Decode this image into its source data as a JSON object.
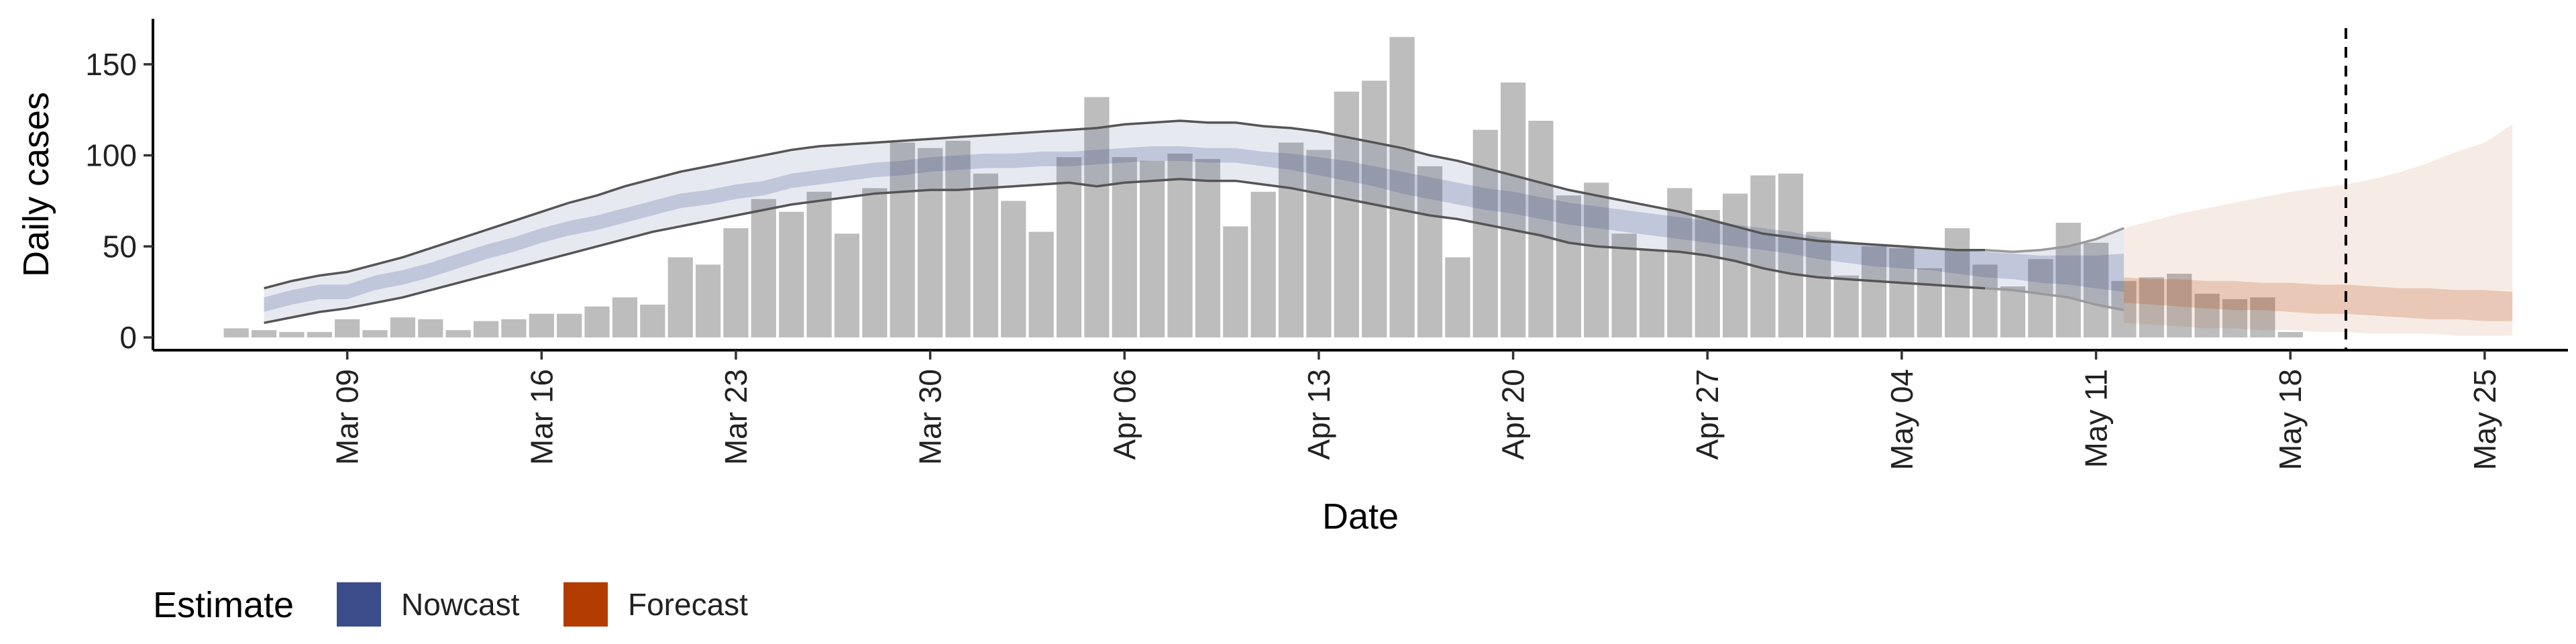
{
  "chart_data": {
    "type": "bar",
    "xlabel": "Date",
    "ylabel": "Daily cases",
    "ylim": [
      -7,
      175
    ],
    "yticks": [
      0,
      50,
      100,
      150
    ],
    "xlim": [
      "2020-03-02",
      "2020-05-28"
    ],
    "xticks": [
      "2020-03-09",
      "2020-03-16",
      "2020-03-23",
      "2020-03-30",
      "2020-04-06",
      "2020-04-13",
      "2020-04-20",
      "2020-04-27",
      "2020-05-04",
      "2020-05-11",
      "2020-05-18",
      "2020-05-25"
    ],
    "xtick_labels": [
      "Mar 09",
      "Mar 16",
      "Mar 23",
      "Mar 30",
      "Apr 06",
      "Apr 13",
      "Apr 20",
      "Apr 27",
      "May 04",
      "May 11",
      "May 18",
      "May 25"
    ],
    "grid": false,
    "legend": {
      "title": "Estimate",
      "position": "bottom-left",
      "entries": [
        {
          "label": "Nowcast",
          "color": "#3a4d8a"
        },
        {
          "label": "Forecast",
          "color": "#b33c00"
        }
      ]
    },
    "cutoff_date": "2020-05-20",
    "bars": {
      "start_date": "2020-03-05",
      "color": "#bdbdbd",
      "values": [
        5,
        4,
        3,
        3,
        10,
        4,
        11,
        10,
        4,
        9,
        10,
        13,
        13,
        17,
        22,
        18,
        44,
        40,
        60,
        76,
        69,
        80,
        57,
        82,
        107,
        104,
        108,
        90,
        75,
        58,
        99,
        132,
        99,
        97,
        101,
        98,
        61,
        80,
        107,
        103,
        135,
        141,
        165,
        94,
        44,
        114,
        140,
        119,
        78,
        85,
        57,
        48,
        82,
        70,
        79,
        89,
        90,
        58,
        34,
        50,
        49,
        38,
        60,
        40,
        28,
        43,
        63,
        52,
        31,
        33,
        35,
        24,
        21,
        22,
        3
      ]
    },
    "series": [
      {
        "name": "Nowcast",
        "color": "#3a4d8a",
        "start_date": "2020-03-06",
        "median": [
          18,
          22,
          25,
          25,
          30,
          33,
          37,
          42,
          47,
          51,
          56,
          60,
          63,
          67,
          71,
          75,
          77,
          80,
          82,
          86,
          88,
          90,
          92,
          93,
          95,
          96,
          97,
          97,
          98,
          98,
          99,
          100,
          101,
          101,
          100,
          100,
          98,
          97,
          95,
          93,
          90,
          86,
          83,
          80,
          77,
          75,
          72,
          69,
          67,
          65,
          63,
          61,
          59,
          57,
          55,
          53,
          50,
          48,
          46,
          45,
          44,
          43,
          41,
          40,
          39,
          38,
          37,
          36
        ],
        "inner_lower": [
          14,
          18,
          21,
          21,
          26,
          29,
          33,
          38,
          43,
          47,
          52,
          56,
          59,
          63,
          67,
          71,
          73,
          76,
          78,
          82,
          84,
          86,
          88,
          89,
          91,
          92,
          93,
          93,
          94,
          94,
          95,
          96,
          97,
          97,
          96,
          96,
          94,
          92,
          89,
          86,
          83,
          79,
          76,
          73,
          70,
          68,
          65,
          62,
          60,
          58,
          56,
          54,
          52,
          50,
          48,
          46,
          43,
          41,
          39,
          38,
          37,
          35,
          33,
          32,
          30,
          29,
          27,
          25
        ],
        "inner_upper": [
          22,
          26,
          29,
          29,
          34,
          37,
          41,
          46,
          51,
          55,
          60,
          64,
          67,
          71,
          75,
          79,
          81,
          84,
          86,
          90,
          92,
          94,
          96,
          97,
          99,
          100,
          101,
          101,
          102,
          102,
          103,
          104,
          105,
          105,
          104,
          104,
          102,
          101,
          99,
          97,
          94,
          91,
          88,
          85,
          82,
          80,
          77,
          74,
          72,
          70,
          68,
          66,
          64,
          62,
          60,
          58,
          55,
          53,
          51,
          50,
          49,
          48,
          47,
          46,
          45,
          45,
          45,
          46
        ],
        "outer_lower": [
          8,
          11,
          14,
          16,
          19,
          22,
          26,
          30,
          34,
          38,
          42,
          46,
          50,
          54,
          58,
          61,
          64,
          67,
          70,
          73,
          75,
          77,
          79,
          80,
          81,
          81,
          82,
          83,
          84,
          85,
          83,
          85,
          86,
          87,
          86,
          86,
          84,
          82,
          79,
          76,
          73,
          70,
          67,
          65,
          62,
          59,
          56,
          52,
          50,
          49,
          48,
          47,
          45,
          42,
          38,
          35,
          33,
          32,
          31,
          30,
          29,
          28,
          27,
          26,
          24,
          22,
          18,
          15
        ],
        "outer_upper": [
          27,
          31,
          34,
          36,
          40,
          44,
          49,
          54,
          59,
          64,
          69,
          74,
          78,
          83,
          87,
          91,
          94,
          97,
          100,
          103,
          105,
          106,
          107,
          108,
          109,
          110,
          111,
          112,
          113,
          114,
          115,
          117,
          118,
          119,
          118,
          118,
          116,
          115,
          113,
          110,
          107,
          104,
          100,
          97,
          93,
          89,
          85,
          81,
          78,
          75,
          72,
          69,
          65,
          61,
          57,
          55,
          53,
          52,
          51,
          50,
          49,
          48,
          48,
          47,
          48,
          50,
          54,
          60
        ]
      },
      {
        "name": "Forecast",
        "color": "#b33c00",
        "start_date": "2020-05-12",
        "median": [
          25,
          24,
          23,
          23,
          22,
          21,
          21,
          20,
          19,
          18,
          17,
          17,
          16,
          16,
          15
        ],
        "inner_lower": [
          19,
          18,
          17,
          16,
          15,
          15,
          14,
          13,
          13,
          12,
          11,
          10,
          10,
          9,
          9
        ],
        "inner_upper": [
          33,
          32,
          32,
          31,
          31,
          30,
          30,
          29,
          29,
          28,
          27,
          27,
          26,
          26,
          25
        ],
        "outer_lower": [
          8,
          7,
          6,
          5,
          5,
          4,
          4,
          3,
          3,
          2,
          2,
          2,
          1,
          1,
          1
        ],
        "outer_upper": [
          60,
          64,
          68,
          71,
          74,
          77,
          80,
          82,
          84,
          87,
          91,
          96,
          102,
          107,
          117
        ]
      }
    ]
  }
}
